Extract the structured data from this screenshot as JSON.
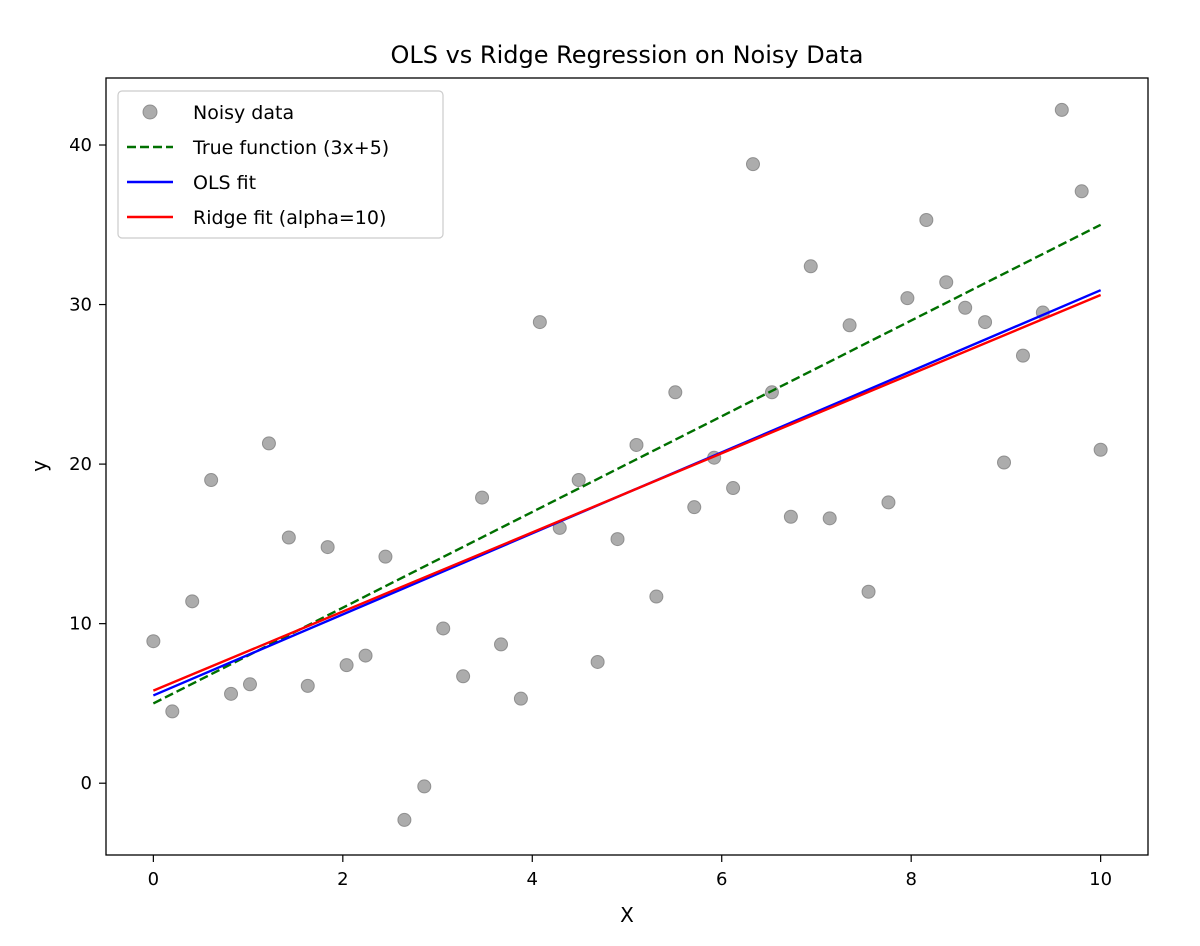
{
  "chart_data": {
    "type": "scatter",
    "title": "OLS vs Ridge Regression on Noisy Data",
    "xlabel": "X",
    "ylabel": "y",
    "xlim": [
      -0.5,
      10.5
    ],
    "ylim": [
      -4.5,
      44.2
    ],
    "xticks": [
      0,
      2,
      4,
      6,
      8,
      10
    ],
    "yticks": [
      0,
      10,
      20,
      30,
      40
    ],
    "grid": false,
    "legend_position": "upper-left",
    "series": [
      {
        "name": "Noisy data",
        "kind": "scatter",
        "color": "#808080",
        "points": [
          [
            0.0,
            8.9
          ],
          [
            0.2,
            4.5
          ],
          [
            0.41,
            11.4
          ],
          [
            0.61,
            19.0
          ],
          [
            0.82,
            5.6
          ],
          [
            1.02,
            6.2
          ],
          [
            1.22,
            21.3
          ],
          [
            1.43,
            15.4
          ],
          [
            1.63,
            6.1
          ],
          [
            1.84,
            14.8
          ],
          [
            2.04,
            7.4
          ],
          [
            2.24,
            8.0
          ],
          [
            2.45,
            14.2
          ],
          [
            2.65,
            -2.3
          ],
          [
            2.86,
            -0.2
          ],
          [
            3.06,
            9.7
          ],
          [
            3.27,
            6.7
          ],
          [
            3.47,
            17.9
          ],
          [
            3.67,
            8.7
          ],
          [
            3.88,
            5.3
          ],
          [
            4.08,
            28.9
          ],
          [
            4.29,
            16.0
          ],
          [
            4.49,
            19.0
          ],
          [
            4.69,
            7.6
          ],
          [
            4.9,
            15.3
          ],
          [
            5.1,
            21.2
          ],
          [
            5.31,
            11.7
          ],
          [
            5.51,
            24.5
          ],
          [
            5.71,
            17.3
          ],
          [
            5.92,
            20.4
          ],
          [
            6.12,
            18.5
          ],
          [
            6.33,
            38.8
          ],
          [
            6.53,
            24.5
          ],
          [
            6.73,
            16.7
          ],
          [
            6.94,
            32.4
          ],
          [
            7.14,
            16.6
          ],
          [
            7.35,
            28.7
          ],
          [
            7.55,
            12.0
          ],
          [
            7.76,
            17.6
          ],
          [
            7.96,
            30.4
          ],
          [
            8.16,
            35.3
          ],
          [
            8.37,
            31.4
          ],
          [
            8.57,
            29.8
          ],
          [
            8.78,
            28.9
          ],
          [
            8.98,
            20.1
          ],
          [
            9.18,
            26.8
          ],
          [
            9.39,
            29.5
          ],
          [
            9.59,
            42.2
          ],
          [
            9.8,
            37.1
          ],
          [
            10.0,
            20.9
          ]
        ]
      },
      {
        "name": "True function (3x+5)",
        "kind": "line",
        "style": "dashed",
        "color": "#007000",
        "points": [
          [
            0,
            5
          ],
          [
            10,
            35
          ]
        ]
      },
      {
        "name": "OLS fit",
        "kind": "line",
        "style": "solid",
        "color": "#0000ff",
        "points": [
          [
            0,
            5.5
          ],
          [
            10,
            30.9
          ]
        ]
      },
      {
        "name": "Ridge fit (alpha=10)",
        "kind": "line",
        "style": "solid",
        "color": "#ff0000",
        "points": [
          [
            0,
            5.8
          ],
          [
            10,
            30.6
          ]
        ]
      }
    ]
  }
}
